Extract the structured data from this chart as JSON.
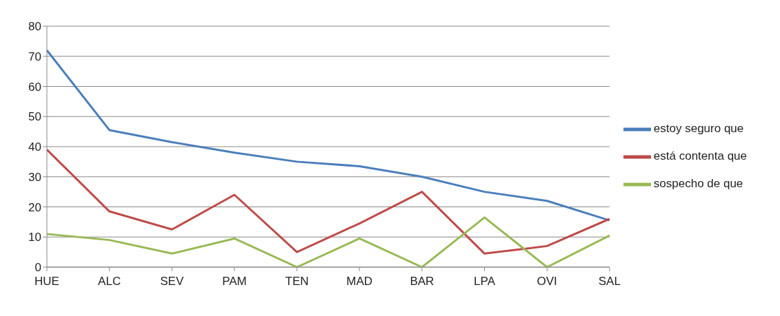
{
  "chart_data": {
    "type": "line",
    "categories": [
      "HUE",
      "ALC",
      "SEV",
      "PAM",
      "TEN",
      "MAD",
      "BAR",
      "LPA",
      "OVI",
      "SAL"
    ],
    "series": [
      {
        "name": "estoy seguro que",
        "color": "#4a7ebb",
        "values": [
          72,
          45.5,
          41.5,
          38,
          35,
          33.5,
          30,
          25,
          22,
          15.5
        ]
      },
      {
        "name": "está contenta que",
        "color": "#be4b48",
        "values": [
          39,
          18.5,
          12.5,
          24,
          5,
          14.5,
          25,
          4.5,
          7,
          16
        ]
      },
      {
        "name": "sospecho de que",
        "color": "#98b954",
        "values": [
          11,
          9,
          4.5,
          9.5,
          0,
          9.5,
          0,
          16.5,
          0,
          10.5
        ]
      }
    ],
    "ylim": [
      0,
      80
    ],
    "yticks": [
      0,
      10,
      20,
      30,
      40,
      50,
      60,
      70,
      80
    ],
    "grid": "y",
    "legend": "right",
    "marker": "none",
    "line_style": "solid"
  }
}
